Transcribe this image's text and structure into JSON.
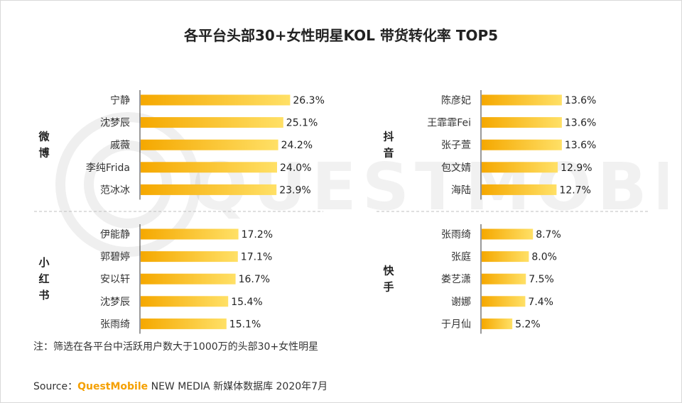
{
  "title": "各平台头部30+女性明星KOL 带货转化率 TOP5",
  "note": "注：筛选在各平台中活跃用户数大于1000万的头部30+女性明星",
  "source": {
    "prefix": "Source：",
    "brand": "QuestMobile",
    "rest": " NEW MEDIA 新媒体数据库 2020年7月"
  },
  "watermark": "QUESTMOBILE",
  "colors": {
    "bar_start": "#ffe066",
    "bar_end": "#f5a800",
    "divider": "#bfbfbf"
  },
  "chart_data": [
    {
      "type": "bar",
      "platform": "微博",
      "categories": [
        "宁静",
        "沈梦辰",
        "戚薇",
        "李纯Frida",
        "范冰冰"
      ],
      "values": [
        26.3,
        25.1,
        24.2,
        24.0,
        23.9
      ],
      "value_labels": [
        "26.3%",
        "25.1%",
        "24.2%",
        "24.0%",
        "23.9%"
      ]
    },
    {
      "type": "bar",
      "platform": "抖音",
      "categories": [
        "陈彦妃",
        "王霏霏Fei",
        "张子萱",
        "包文婧",
        "海陆"
      ],
      "values": [
        13.6,
        13.6,
        13.6,
        12.9,
        12.7
      ],
      "value_labels": [
        "13.6%",
        "13.6%",
        "13.6%",
        "12.9%",
        "12.7%"
      ]
    },
    {
      "type": "bar",
      "platform": "小红书",
      "categories": [
        "伊能静",
        "郭碧婷",
        "安以轩",
        "沈梦辰",
        "张雨绮"
      ],
      "values": [
        17.2,
        17.1,
        16.7,
        15.4,
        15.1
      ],
      "value_labels": [
        "17.2%",
        "17.1%",
        "16.7%",
        "15.4%",
        "15.1%"
      ]
    },
    {
      "type": "bar",
      "platform": "快手",
      "categories": [
        "张雨绮",
        "张庭",
        "娄艺潇",
        "谢娜",
        "于月仙"
      ],
      "values": [
        8.7,
        8.0,
        7.5,
        7.4,
        5.2
      ],
      "value_labels": [
        "8.7%",
        "8.0%",
        "7.5%",
        "7.4%",
        "5.2%"
      ]
    }
  ]
}
